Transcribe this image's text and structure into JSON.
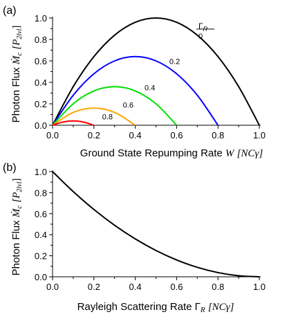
{
  "chart_data": [
    {
      "panel_label": "(a)",
      "type": "line",
      "xlabel_text": "Ground State Repumping Rate ",
      "xlabel_var": "W",
      "xlabel_unit": "[NCγ]",
      "ylabel_text": "Photon Flux ",
      "ylabel_sym": "Ṁ",
      "ylabel_sub": "c",
      "ylabel_unit": "[P",
      "ylabel_unit_sub": "2lvl",
      "ylabel_unit_end": "]",
      "xlim": [
        0,
        1
      ],
      "ylim": [
        0,
        1
      ],
      "xticks": [
        "0.0",
        "0.2",
        "0.4",
        "0.6",
        "0.8",
        "1.0"
      ],
      "yticks": [
        "0.0",
        "0.2",
        "0.4",
        "0.6",
        "0.8",
        "1.0"
      ],
      "legend_header": "Γ",
      "legend_header_sub": "R",
      "series": [
        {
          "name": "0",
          "color": "#000000",
          "x": [
            0,
            0.1,
            0.2,
            0.3,
            0.4,
            0.5,
            0.6,
            0.7,
            0.8,
            0.9,
            1.0
          ],
          "values": [
            0,
            0.36,
            0.64,
            0.84,
            0.96,
            1.0,
            0.96,
            0.84,
            0.64,
            0.36,
            0
          ]
        },
        {
          "name": "0.2",
          "color": "#0000ff",
          "x": [
            0,
            0.1,
            0.2,
            0.3,
            0.4,
            0.5,
            0.6,
            0.7,
            0.8
          ],
          "values": [
            0,
            0.28,
            0.48,
            0.6,
            0.64,
            0.6,
            0.48,
            0.28,
            0
          ]
        },
        {
          "name": "0.4",
          "color": "#00e000",
          "x": [
            0,
            0.1,
            0.2,
            0.3,
            0.4,
            0.5,
            0.6
          ],
          "values": [
            0,
            0.2,
            0.32,
            0.36,
            0.32,
            0.2,
            0
          ]
        },
        {
          "name": "0.6",
          "color": "#ffa500",
          "x": [
            0,
            0.1,
            0.2,
            0.3,
            0.4
          ],
          "values": [
            0,
            0.12,
            0.16,
            0.12,
            0
          ]
        },
        {
          "name": "0.8",
          "color": "#ff0000",
          "x": [
            0,
            0.05,
            0.1,
            0.15,
            0.2
          ],
          "values": [
            0,
            0.03,
            0.04,
            0.03,
            0
          ]
        }
      ]
    },
    {
      "panel_label": "(b)",
      "type": "line",
      "xlabel_text": "Rayleigh Scattering Rate ",
      "xlabel_var": "Γ",
      "xlabel_var_sub": "R",
      "xlabel_unit": "[NCγ]",
      "ylabel_text": "Photon Flux ",
      "ylabel_sym": "Ṁ",
      "ylabel_sub": "c",
      "ylabel_unit": "[P",
      "ylabel_unit_sub": "2lvl",
      "ylabel_unit_end": "]",
      "xlim": [
        0,
        1
      ],
      "ylim": [
        0,
        1
      ],
      "xticks": [
        "0.0",
        "0.2",
        "0.4",
        "0.6",
        "0.8",
        "1.0"
      ],
      "yticks": [
        "0.0",
        "0.2",
        "0.4",
        "0.6",
        "0.8",
        "1.0"
      ],
      "series": [
        {
          "color": "#000000",
          "x": [
            0,
            0.1,
            0.2,
            0.3,
            0.4,
            0.5,
            0.6,
            0.7,
            0.8,
            0.9,
            1.0
          ],
          "values": [
            1.0,
            0.81,
            0.64,
            0.49,
            0.36,
            0.25,
            0.16,
            0.09,
            0.04,
            0.01,
            0
          ]
        }
      ]
    }
  ]
}
